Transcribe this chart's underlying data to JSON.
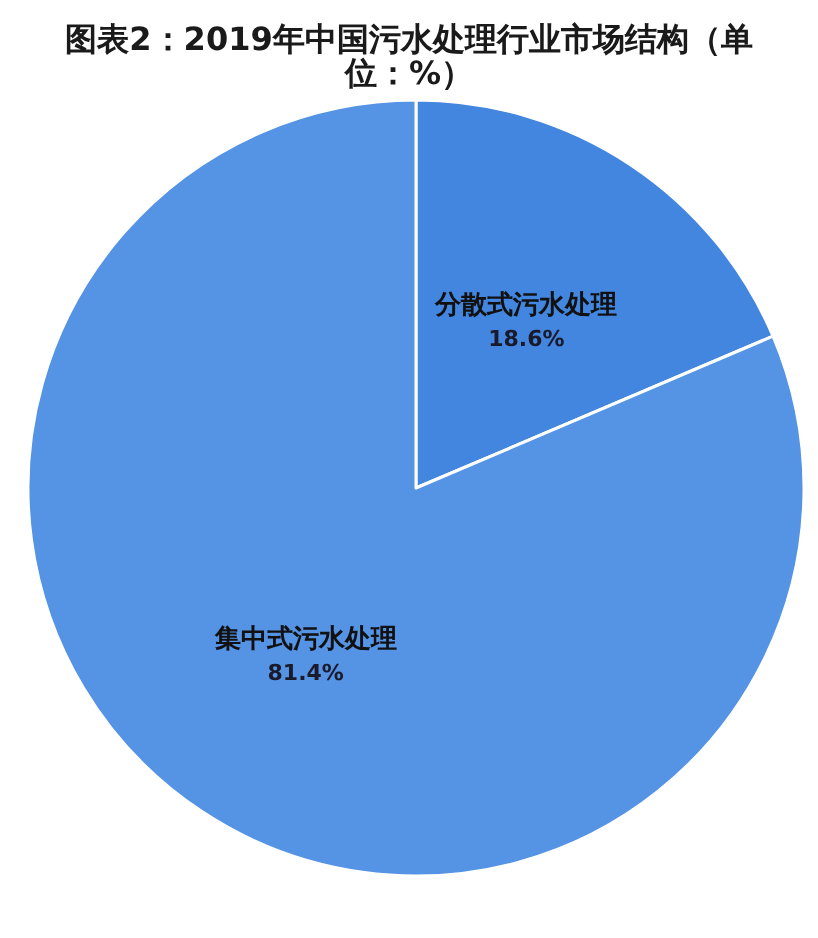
{
  "chart_data": {
    "type": "pie",
    "title": "图表2：2019年中国污水处理行业市场结构（单位：%）",
    "categories": [
      "分散式污水处理",
      "集中式污水处理"
    ],
    "values": [
      18.6,
      81.4
    ],
    "colors": [
      "#4286e0",
      "#5593e5"
    ],
    "value_labels": [
      "18.6%",
      "81.4%"
    ]
  }
}
